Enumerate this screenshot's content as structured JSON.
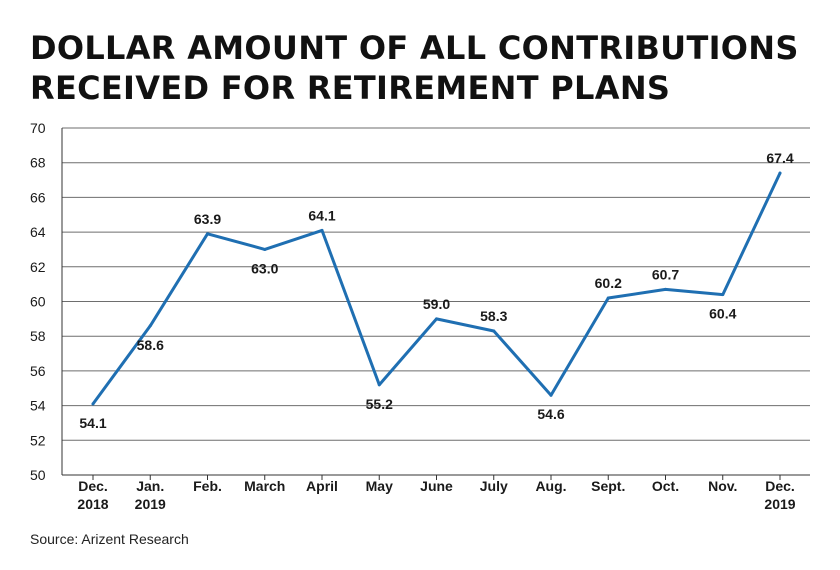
{
  "title_lines": [
    "DOLLAR AMOUNT OF ALL CONTRIBUTIONS",
    "RECEIVED FOR RETIREMENT PLANS"
  ],
  "source": "Source: Arizent Research",
  "colors": {
    "line": "#1f6fb2",
    "grid": "#6e6e6e",
    "axis": "#333333",
    "text": "#1a1a1a"
  },
  "chart_data": {
    "type": "line",
    "title": "DOLLAR AMOUNT OF ALL CONTRIBUTIONS RECEIVED FOR RETIREMENT PLANS",
    "xlabel": "",
    "ylabel": "",
    "categories": [
      [
        "Dec.",
        "2018"
      ],
      [
        "Jan.",
        "2019"
      ],
      [
        "Feb."
      ],
      [
        "March"
      ],
      [
        "April"
      ],
      [
        "May"
      ],
      [
        "June"
      ],
      [
        "July"
      ],
      [
        "Aug."
      ],
      [
        "Sept."
      ],
      [
        "Oct."
      ],
      [
        "Nov."
      ],
      [
        "Dec.",
        "2019"
      ]
    ],
    "series": [
      {
        "values": [
          54.1,
          58.6,
          63.9,
          63.0,
          64.1,
          55.2,
          59.0,
          58.3,
          54.6,
          60.2,
          60.7,
          60.4,
          67.4
        ]
      }
    ],
    "data_labels": [
      "54.1",
      "58.6",
      "63.9",
      "63.0",
      "64.1",
      "55.2",
      "59.0",
      "58.3",
      "54.6",
      "60.2",
      "60.7",
      "60.4",
      "67.4"
    ],
    "label_position": [
      "below",
      "below",
      "above",
      "below",
      "above",
      "below",
      "above",
      "above",
      "below",
      "above",
      "above",
      "below",
      "above"
    ],
    "ylim": [
      50,
      70
    ],
    "yticks": [
      50,
      52,
      54,
      56,
      58,
      60,
      62,
      64,
      66,
      68,
      70
    ],
    "grid": true,
    "legend": "none"
  }
}
